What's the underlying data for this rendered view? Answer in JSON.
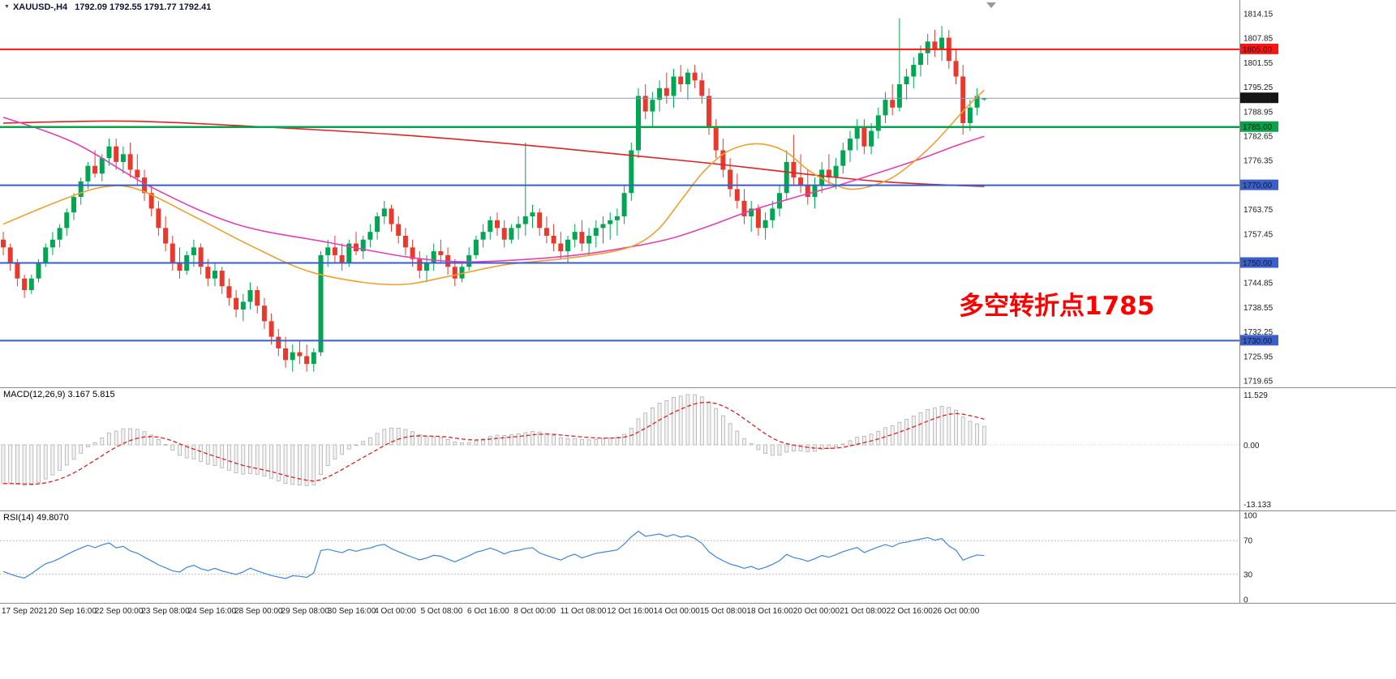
{
  "header": {
    "symbol_period": "XAUUSD-,H4",
    "ohlc": "1792.09 1792.55 1791.77 1792.41"
  },
  "annotation": {
    "text": "多空转折点1785",
    "color": "#FE0000"
  },
  "panels": {
    "macd": {
      "label": "MACD(12,26,9) 3.167 5.815",
      "scale_labels": [
        "11.529",
        "0.00",
        "-13.133"
      ]
    },
    "rsi": {
      "label": "RSI(14) 49.8070",
      "scale_labels": [
        "100",
        "70",
        "30",
        "0"
      ]
    }
  },
  "price_scale": {
    "ticks": [
      1814.15,
      1807.85,
      1801.55,
      1795.25,
      1788.95,
      1782.65,
      1776.35,
      1763.75,
      1757.45,
      1744.85,
      1738.55,
      1732.25,
      1725.95,
      1719.65
    ],
    "badges": [
      {
        "price": 1805.0,
        "label": "1805.00",
        "bg": "#fa1414"
      },
      {
        "price": 1792.41,
        "label": "1792.41",
        "bg": "#151515"
      },
      {
        "price": 1785.0,
        "label": "1785.00",
        "bg": "#0aa24c"
      },
      {
        "price": 1770.0,
        "label": "1770.00",
        "bg": "#3a5fc8"
      },
      {
        "price": 1750.0,
        "label": "1750.00",
        "bg": "#3a5fc8"
      },
      {
        "price": 1730.0,
        "label": "1730.00",
        "bg": "#3a5fc8"
      }
    ]
  },
  "time_axis": {
    "labels": [
      "17 Sep 2021",
      "20 Sep 16:00",
      "22 Sep 00:00",
      "23 Sep 08:00",
      "24 Sep 16:00",
      "28 Sep 00:00",
      "29 Sep 08:00",
      "30 Sep 16:00",
      "4 Oct 00:00",
      "5 Oct 08:00",
      "6 Oct 16:00",
      "8 Oct 00:00",
      "11 Oct 08:00",
      "12 Oct 16:00",
      "14 Oct 00:00",
      "15 Oct 08:00",
      "18 Oct 16:00",
      "20 Oct 00:00",
      "21 Oct 08:00",
      "22 Oct 16:00",
      "26 Oct 00:00"
    ]
  },
  "chart_data": {
    "type": "candlestick",
    "symbol": "XAUUSD-",
    "timeframe": "H4",
    "grid": false,
    "price_axis_range": [
      1719.65,
      1814.15
    ],
    "colors": {
      "candle_up": "#00a651",
      "candle_down": "#e8392c",
      "macd_histogram_fill": "#f3f3f3",
      "macd_histogram_stroke": "#afafaf",
      "macd_signal": "#e02020",
      "rsi_line": "#3b87d9",
      "separator": "#8c8c8c"
    },
    "candles": [
      [
        1756,
        1758,
        1752,
        1754
      ],
      [
        1754,
        1755,
        1748,
        1750
      ],
      [
        1750,
        1751,
        1744,
        1746
      ],
      [
        1746,
        1747,
        1741,
        1743
      ],
      [
        1743,
        1747,
        1742,
        1746
      ],
      [
        1746,
        1751,
        1745,
        1750
      ],
      [
        1750,
        1755,
        1749,
        1754
      ],
      [
        1754,
        1758,
        1752,
        1756
      ],
      [
        1756,
        1760,
        1754,
        1759
      ],
      [
        1759,
        1764,
        1757,
        1763
      ],
      [
        1763,
        1768,
        1761,
        1767
      ],
      [
        1767,
        1772,
        1765,
        1771
      ],
      [
        1771,
        1776,
        1769,
        1775
      ],
      [
        1775,
        1779,
        1772,
        1773
      ],
      [
        1773,
        1778,
        1771,
        1777
      ],
      [
        1777,
        1782,
        1775,
        1780
      ],
      [
        1780,
        1782,
        1774,
        1776
      ],
      [
        1776,
        1780,
        1773,
        1778
      ],
      [
        1778,
        1781,
        1772,
        1774
      ],
      [
        1774,
        1778,
        1770,
        1772
      ],
      [
        1772,
        1774,
        1766,
        1768
      ],
      [
        1768,
        1770,
        1762,
        1764
      ],
      [
        1764,
        1766,
        1757,
        1759
      ],
      [
        1759,
        1762,
        1753,
        1755
      ],
      [
        1755,
        1757,
        1748,
        1750
      ],
      [
        1750,
        1754,
        1746,
        1748
      ],
      [
        1748,
        1753,
        1747,
        1752
      ],
      [
        1752,
        1756,
        1749,
        1754
      ],
      [
        1754,
        1755,
        1747,
        1749
      ],
      [
        1749,
        1751,
        1744,
        1746
      ],
      [
        1746,
        1750,
        1744,
        1748
      ],
      [
        1748,
        1749,
        1742,
        1744
      ],
      [
        1744,
        1746,
        1739,
        1741
      ],
      [
        1741,
        1743,
        1736,
        1738
      ],
      [
        1738,
        1742,
        1735,
        1740
      ],
      [
        1740,
        1745,
        1738,
        1743
      ],
      [
        1743,
        1744,
        1737,
        1739
      ],
      [
        1739,
        1741,
        1733,
        1735
      ],
      [
        1735,
        1737,
        1729,
        1731
      ],
      [
        1731,
        1733,
        1726,
        1728
      ],
      [
        1728,
        1731,
        1723,
        1725
      ],
      [
        1725,
        1729,
        1722,
        1727
      ],
      [
        1727,
        1730,
        1724,
        1726
      ],
      [
        1726,
        1729,
        1722,
        1724
      ],
      [
        1724,
        1728,
        1722,
        1727
      ],
      [
        1727,
        1753,
        1726,
        1752
      ],
      [
        1752,
        1756,
        1749,
        1754
      ],
      [
        1754,
        1757,
        1750,
        1752
      ],
      [
        1752,
        1755,
        1748,
        1750
      ],
      [
        1750,
        1756,
        1749,
        1755
      ],
      [
        1755,
        1758,
        1752,
        1753
      ],
      [
        1753,
        1757,
        1751,
        1756
      ],
      [
        1756,
        1760,
        1754,
        1758
      ],
      [
        1758,
        1763,
        1756,
        1762
      ],
      [
        1762,
        1766,
        1760,
        1764
      ],
      [
        1764,
        1765,
        1758,
        1760
      ],
      [
        1760,
        1762,
        1755,
        1757
      ],
      [
        1757,
        1759,
        1752,
        1754
      ],
      [
        1754,
        1756,
        1749,
        1751
      ],
      [
        1751,
        1753,
        1746,
        1748
      ],
      [
        1748,
        1752,
        1745,
        1750
      ],
      [
        1750,
        1755,
        1748,
        1753
      ],
      [
        1753,
        1756,
        1750,
        1752
      ],
      [
        1752,
        1754,
        1747,
        1749
      ],
      [
        1749,
        1751,
        1744,
        1746
      ],
      [
        1746,
        1750,
        1745,
        1749
      ],
      [
        1749,
        1754,
        1748,
        1752
      ],
      [
        1752,
        1757,
        1751,
        1756
      ],
      [
        1756,
        1760,
        1754,
        1758
      ],
      [
        1758,
        1762,
        1756,
        1761
      ],
      [
        1761,
        1763,
        1757,
        1759
      ],
      [
        1759,
        1761,
        1754,
        1756
      ],
      [
        1756,
        1760,
        1755,
        1759
      ],
      [
        1759,
        1762,
        1756,
        1760
      ],
      [
        1760,
        1781,
        1757,
        1762
      ],
      [
        1762,
        1765,
        1759,
        1763
      ],
      [
        1763,
        1764,
        1757,
        1759
      ],
      [
        1759,
        1762,
        1755,
        1757
      ],
      [
        1757,
        1760,
        1753,
        1755
      ],
      [
        1755,
        1758,
        1751,
        1753
      ],
      [
        1753,
        1757,
        1750,
        1756
      ],
      [
        1756,
        1760,
        1754,
        1758
      ],
      [
        1758,
        1761,
        1753,
        1755
      ],
      [
        1755,
        1759,
        1752,
        1757
      ],
      [
        1757,
        1761,
        1754,
        1759
      ],
      [
        1759,
        1762,
        1755,
        1760
      ],
      [
        1760,
        1763,
        1756,
        1761
      ],
      [
        1761,
        1764,
        1757,
        1762
      ],
      [
        1762,
        1770,
        1760,
        1768
      ],
      [
        1768,
        1781,
        1766,
        1779
      ],
      [
        1779,
        1795,
        1777,
        1793
      ],
      [
        1793,
        1796,
        1787,
        1789
      ],
      [
        1789,
        1794,
        1785,
        1792
      ],
      [
        1792,
        1797,
        1789,
        1795
      ],
      [
        1795,
        1799,
        1791,
        1793
      ],
      [
        1793,
        1800,
        1790,
        1798
      ],
      [
        1798,
        1801,
        1794,
        1796
      ],
      [
        1796,
        1800,
        1792,
        1799
      ],
      [
        1799,
        1801,
        1795,
        1797
      ],
      [
        1797,
        1799,
        1791,
        1793
      ],
      [
        1793,
        1795,
        1783,
        1785
      ],
      [
        1785,
        1787,
        1777,
        1779
      ],
      [
        1779,
        1782,
        1772,
        1774
      ],
      [
        1774,
        1777,
        1767,
        1769
      ],
      [
        1769,
        1773,
        1764,
        1766
      ],
      [
        1766,
        1769,
        1760,
        1762
      ],
      [
        1762,
        1766,
        1758,
        1764
      ],
      [
        1764,
        1765,
        1757,
        1759
      ],
      [
        1759,
        1763,
        1756,
        1761
      ],
      [
        1761,
        1766,
        1759,
        1764
      ],
      [
        1764,
        1770,
        1762,
        1768
      ],
      [
        1768,
        1779,
        1766,
        1776
      ],
      [
        1776,
        1783,
        1770,
        1772
      ],
      [
        1772,
        1778,
        1768,
        1770
      ],
      [
        1770,
        1774,
        1765,
        1767
      ],
      [
        1767,
        1772,
        1764,
        1770
      ],
      [
        1770,
        1776,
        1768,
        1774
      ],
      [
        1774,
        1778,
        1770,
        1772
      ],
      [
        1772,
        1777,
        1769,
        1775
      ],
      [
        1775,
        1781,
        1773,
        1779
      ],
      [
        1779,
        1784,
        1776,
        1782
      ],
      [
        1782,
        1787,
        1779,
        1785
      ],
      [
        1785,
        1787,
        1778,
        1780
      ],
      [
        1780,
        1786,
        1778,
        1784
      ],
      [
        1784,
        1790,
        1782,
        1788
      ],
      [
        1788,
        1794,
        1786,
        1792
      ],
      [
        1792,
        1796,
        1788,
        1790
      ],
      [
        1790,
        1813,
        1789,
        1796
      ],
      [
        1796,
        1800,
        1792,
        1798
      ],
      [
        1798,
        1803,
        1795,
        1801
      ],
      [
        1801,
        1806,
        1798,
        1804
      ],
      [
        1804,
        1809,
        1801,
        1807
      ],
      [
        1807,
        1810,
        1803,
        1805
      ],
      [
        1805,
        1811,
        1802,
        1808
      ],
      [
        1808,
        1810,
        1800,
        1802
      ],
      [
        1802,
        1805,
        1796,
        1798
      ],
      [
        1798,
        1801,
        1783,
        1786
      ],
      [
        1786,
        1792,
        1784,
        1790
      ],
      [
        1790,
        1795,
        1788,
        1793
      ],
      [
        1792.09,
        1792.55,
        1791.77,
        1792.41
      ]
    ],
    "moving_averages": [
      {
        "name": "ma-slow-red",
        "color": "#e02222",
        "points": [
          [
            0,
            1786
          ],
          [
            18,
            1786.5
          ],
          [
            37,
            1785
          ],
          [
            56,
            1783
          ],
          [
            73,
            1780.5
          ],
          [
            90,
            1777.5
          ],
          [
            102,
            1775.3
          ],
          [
            114,
            1772.8
          ],
          [
            124,
            1771
          ],
          [
            132,
            1770.2
          ],
          [
            139,
            1769.7
          ]
        ]
      },
      {
        "name": "ma-medium-magenta",
        "color": "#e33fb8",
        "points": [
          [
            0,
            1787.5
          ],
          [
            10,
            1781
          ],
          [
            21,
            1769.5
          ],
          [
            33,
            1760
          ],
          [
            46,
            1755.3
          ],
          [
            57,
            1751.6
          ],
          [
            65,
            1750.3
          ],
          [
            74,
            1750.9
          ],
          [
            82,
            1752.2
          ],
          [
            90,
            1754.5
          ],
          [
            95,
            1756.5
          ],
          [
            100,
            1759.5
          ],
          [
            106,
            1763.5
          ],
          [
            112,
            1766.8
          ],
          [
            118,
            1769.8
          ],
          [
            124,
            1773.2
          ],
          [
            130,
            1776.8
          ],
          [
            135,
            1780.2
          ],
          [
            139,
            1782.6
          ]
        ]
      },
      {
        "name": "ma-fast-orange",
        "color": "#f0a02c",
        "points": [
          [
            0,
            1760
          ],
          [
            8,
            1766
          ],
          [
            14,
            1769.5
          ],
          [
            19,
            1769
          ],
          [
            27,
            1762
          ],
          [
            35,
            1754.5
          ],
          [
            43,
            1748
          ],
          [
            51,
            1745
          ],
          [
            57,
            1744.5
          ],
          [
            63,
            1746.5
          ],
          [
            71,
            1749.5
          ],
          [
            79,
            1751
          ],
          [
            86,
            1752.8
          ],
          [
            90,
            1755
          ],
          [
            93,
            1759
          ],
          [
            96,
            1766
          ],
          [
            99,
            1773
          ],
          [
            102,
            1778
          ],
          [
            105,
            1780.3
          ],
          [
            108,
            1780.5
          ],
          [
            111,
            1778.5
          ],
          [
            114,
            1774
          ],
          [
            117,
            1770.8
          ],
          [
            120,
            1769
          ],
          [
            123,
            1769.8
          ],
          [
            126,
            1772
          ],
          [
            129,
            1776
          ],
          [
            132,
            1781
          ],
          [
            135,
            1787
          ],
          [
            137,
            1791
          ],
          [
            139,
            1794.5
          ]
        ]
      }
    ],
    "hlines": [
      {
        "price": 1805.0,
        "color": "#fa1414",
        "width": 2
      },
      {
        "price": 1785.0,
        "color": "#0aa24c",
        "width": 2.5
      },
      {
        "price": 1770.0,
        "color": "#3a5fc8",
        "width": 2
      },
      {
        "price": 1750.0,
        "color": "#3a5fc8",
        "width": 2
      },
      {
        "price": 1730.0,
        "color": "#3a5fc8",
        "width": 2
      },
      {
        "price": 1792.41,
        "color": "#8a99b5",
        "width": 1,
        "role": "bid"
      }
    ],
    "macd": {
      "fast": 12,
      "slow": 26,
      "signal": 9,
      "current": [
        3.167,
        5.815
      ],
      "axis_labels": [
        11.529,
        0.0,
        -13.133
      ],
      "left_edge_seed_fast": 1758,
      "left_edge_seed_slow": 1767
    },
    "rsi": {
      "period": 14,
      "current": 49.807,
      "levels": [
        70,
        30
      ],
      "range": [
        0,
        100
      ],
      "left_edge_seed_gain": 1.0,
      "left_edge_seed_loss": 2.0
    }
  }
}
